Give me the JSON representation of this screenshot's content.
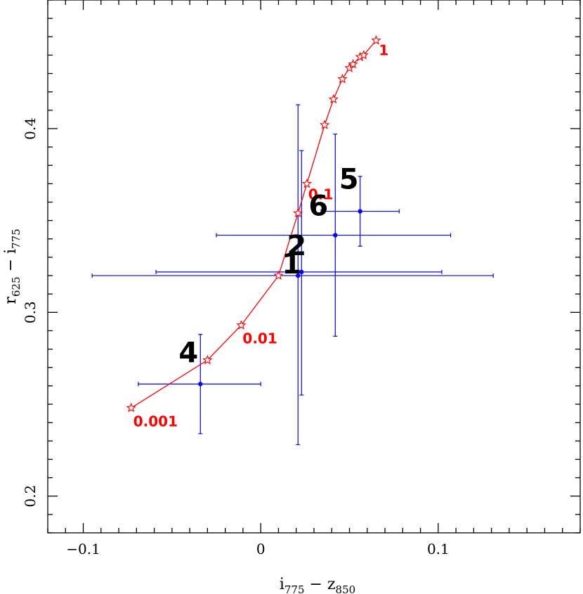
{
  "chart_data": {
    "type": "scatter",
    "title": "",
    "xlabel": {
      "main1": "i",
      "sub1": "775",
      "dash": " − ",
      "main2": "z",
      "sub2": "850"
    },
    "ylabel": {
      "main1": "r",
      "sub1": "625",
      "dash": " − ",
      "main2": "i",
      "sub2": "775"
    },
    "xlim": [
      -0.12,
      0.18
    ],
    "ylim": [
      0.18,
      0.47
    ],
    "x_ticks": [
      {
        "value": -0.1,
        "label": "−0.1"
      },
      {
        "value": 0,
        "label": "0"
      },
      {
        "value": 0.1,
        "label": "0.1"
      }
    ],
    "y_ticks": [
      {
        "value": 0.2,
        "label": "0.2"
      },
      {
        "value": 0.3,
        "label": "0.3"
      },
      {
        "value": 0.4,
        "label": "0.4"
      }
    ],
    "grid": false,
    "colors": {
      "points": "#0000ff",
      "track": "#ff0000",
      "axes": "#000000"
    },
    "series": [
      {
        "type": "scatter_errorbars",
        "points": [
          {
            "label": "1",
            "x": 0.021,
            "y": 0.32,
            "xerr_low": 0.116,
            "xerr_high": 0.11,
            "yerr_low": 0.092,
            "yerr_high": 0.093
          },
          {
            "label": "2",
            "x": 0.023,
            "y": 0.322,
            "xerr_low": 0.082,
            "xerr_high": 0.079,
            "yerr_low": 0.067,
            "yerr_high": 0.066
          },
          {
            "label": "4",
            "x": -0.034,
            "y": 0.261,
            "xerr_low": 0.035,
            "xerr_high": 0.034,
            "yerr_low": 0.027,
            "yerr_high": 0.027
          },
          {
            "label": "5",
            "x": 0.056,
            "y": 0.355,
            "xerr_low": 0.022,
            "xerr_high": 0.022,
            "yerr_low": 0.019,
            "yerr_high": 0.019
          },
          {
            "label": "6",
            "x": 0.042,
            "y": 0.342,
            "xerr_low": 0.067,
            "xerr_high": 0.065,
            "yerr_low": 0.055,
            "yerr_high": 0.055
          }
        ]
      },
      {
        "type": "line_with_star_markers",
        "points": [
          {
            "x": -0.073,
            "y": 0.248
          },
          {
            "x": -0.03,
            "y": 0.274
          },
          {
            "x": -0.011,
            "y": 0.293
          },
          {
            "x": 0.01,
            "y": 0.32
          },
          {
            "x": 0.021,
            "y": 0.354
          },
          {
            "x": 0.026,
            "y": 0.37
          },
          {
            "x": 0.036,
            "y": 0.402
          },
          {
            "x": 0.041,
            "y": 0.416
          },
          {
            "x": 0.046,
            "y": 0.427
          },
          {
            "x": 0.05,
            "y": 0.433
          },
          {
            "x": 0.052,
            "y": 0.435
          },
          {
            "x": 0.056,
            "y": 0.439
          },
          {
            "x": 0.058,
            "y": 0.44
          },
          {
            "x": 0.065,
            "y": 0.448
          }
        ],
        "annotations": [
          {
            "text": "0.001",
            "x": -0.073,
            "y": 0.248
          },
          {
            "text": "0.01",
            "x": -0.011,
            "y": 0.293
          },
          {
            "text": "0.1",
            "x": 0.026,
            "y": 0.37
          },
          {
            "text": "1",
            "x": 0.065,
            "y": 0.448
          }
        ]
      }
    ],
    "point_labels": [
      {
        "text": "1",
        "x": 0.021,
        "y": 0.32
      },
      {
        "text": "2",
        "x": 0.023,
        "y": 0.322
      },
      {
        "text": "4",
        "x": -0.034,
        "y": 0.261
      },
      {
        "text": "5",
        "x": 0.056,
        "y": 0.355
      },
      {
        "text": "6",
        "x": 0.042,
        "y": 0.342
      }
    ]
  }
}
